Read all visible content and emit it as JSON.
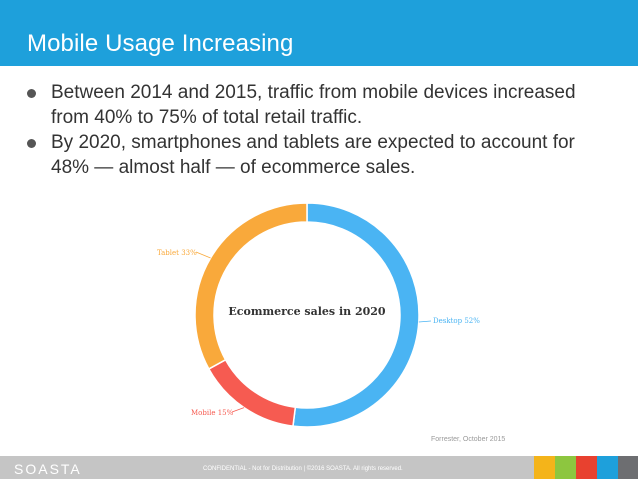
{
  "slide": {
    "title": "Mobile Usage Increasing",
    "bullets": [
      "Between 2014 and 2015, traffic from mobile devices increased from 40% to 75% of total retail traffic.",
      "By 2020, smartphones and tablets are expected to account for 48% — almost half — of ecommerce sales."
    ]
  },
  "chart_data": {
    "type": "pie",
    "variant": "donut",
    "title": "Ecommerce sales in 2020",
    "labels": [
      "Desktop 52%",
      "Mobile 15%",
      "Tablet 33%"
    ],
    "values": [
      52,
      15,
      33
    ],
    "colors": [
      "#4ab4f3",
      "#f65b51",
      "#f9a93b"
    ],
    "source": "Forrester, October 2015"
  },
  "footer": {
    "logo": "SOASTA",
    "text": "CONFIDENTIAL - Not for Distribution  |  ©2016 SOASTA. All rights reserved.",
    "swatch_colors": [
      "#f4b41a",
      "#8dc63f",
      "#e8412f",
      "#1ea0db",
      "#6d6e71"
    ]
  }
}
